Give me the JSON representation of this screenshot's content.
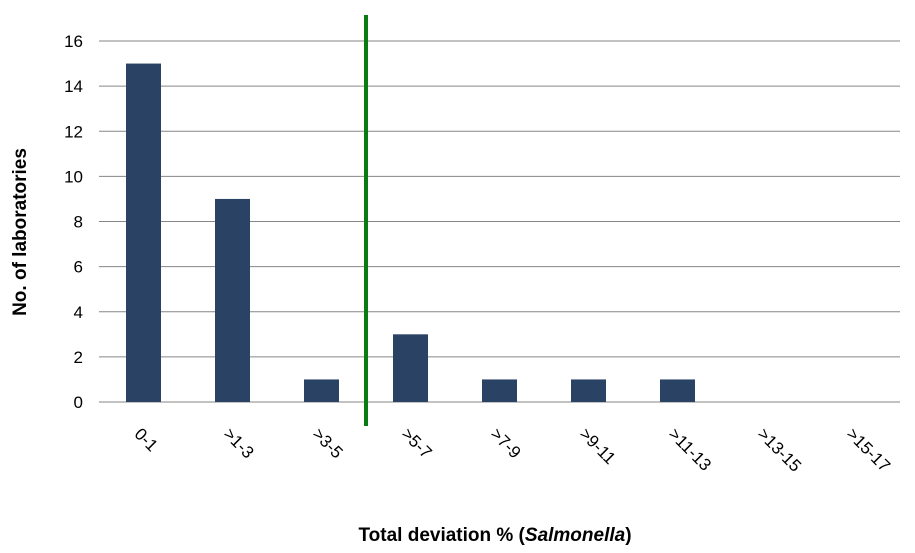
{
  "chart_data": {
    "type": "bar",
    "categories": [
      "0-1",
      ">1-3",
      ">3-5",
      ">5-7",
      ">7-9",
      ">9-11",
      ">11-13",
      ">13-15",
      ">15-17"
    ],
    "series": [
      {
        "values": [
          15,
          9,
          1,
          3,
          1,
          1,
          1,
          0,
          0
        ],
        "color": "#2a4365"
      }
    ],
    "ylabel": "No. of laboratories",
    "xlabel_prefix": "Total deviation % (",
    "xlabel_italic": "Salmonella",
    "xlabel_suffix": ")",
    "ylim": [
      0,
      16
    ],
    "yticks": [
      0,
      2,
      4,
      6,
      8,
      10,
      12,
      14,
      16
    ],
    "grid": true,
    "gridline_color": "#868686",
    "legend": "none",
    "reference_line": {
      "after_category_index": 2,
      "color": "#0a7a14"
    }
  }
}
